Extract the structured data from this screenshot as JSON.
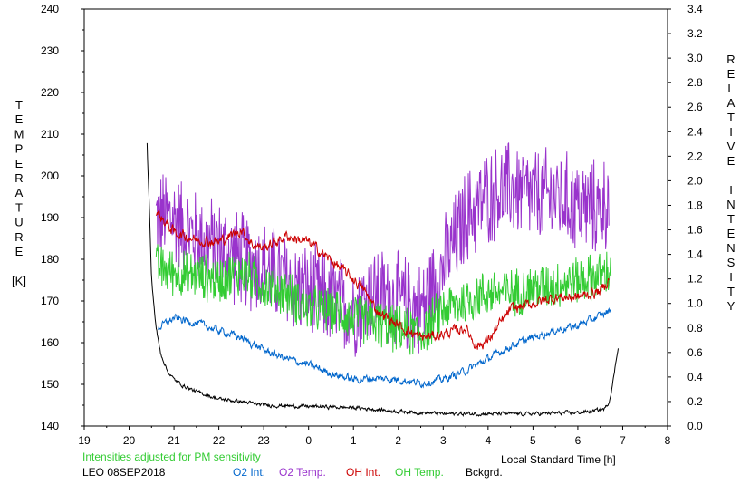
{
  "chart_data": {
    "type": "line",
    "title": "",
    "xlabel": "Local Standard Time [h]",
    "ylabel_left": "TEMPERATURE [K]",
    "ylabel_right": "RELATIVE INTENSITY",
    "ylabel_left_letters": [
      "T",
      "E",
      "M",
      "P",
      "E",
      "R",
      "A",
      "T",
      "U",
      "R",
      "E",
      "",
      "[K]"
    ],
    "ylabel_right_letters": [
      "R",
      "E",
      "L",
      "A",
      "T",
      "I",
      "V",
      "E",
      "",
      "I",
      "N",
      "T",
      "E",
      "N",
      "S",
      "I",
      "T",
      "Y"
    ],
    "x_ticks": [
      19,
      20,
      21,
      22,
      23,
      0,
      1,
      2,
      3,
      4,
      5,
      6,
      7,
      8
    ],
    "xlim": [
      19,
      32
    ],
    "ylim_left": [
      140,
      240
    ],
    "y_ticks_left": [
      140,
      150,
      160,
      170,
      180,
      190,
      200,
      210,
      220,
      230,
      240
    ],
    "ylim_right": [
      0,
      3.4
    ],
    "y_ticks_right": [
      "0.0",
      "0.2",
      "0.4",
      "0.6",
      "0.8",
      "1.0",
      "1.2",
      "1.4",
      "1.6",
      "1.8",
      "2.0",
      "2.2",
      "2.4",
      "2.6",
      "2.8",
      "3.0",
      "3.2",
      "3.4"
    ],
    "note": "Intensities adjusted for PM sensitivity",
    "station": "LEO 08SEP2018",
    "series": [
      {
        "name": "O2 Int.",
        "axis": "right",
        "color": "#0066cc",
        "noise": 0.025,
        "x": [
          20.65,
          21.0,
          21.5,
          22.0,
          22.5,
          23.0,
          23.5,
          24.0,
          24.5,
          25.0,
          25.5,
          26.0,
          26.5,
          27.0,
          27.5,
          28.0,
          28.5,
          29.0,
          29.5,
          30.0,
          30.5,
          30.75
        ],
        "values": [
          0.8,
          0.88,
          0.84,
          0.78,
          0.72,
          0.62,
          0.55,
          0.5,
          0.43,
          0.38,
          0.39,
          0.38,
          0.35,
          0.38,
          0.45,
          0.55,
          0.65,
          0.72,
          0.78,
          0.82,
          0.9,
          0.95
        ]
      },
      {
        "name": "O2 Temp.",
        "axis": "left",
        "color": "#9933cc",
        "noise": 13,
        "x": [
          20.6,
          21.0,
          21.5,
          22.0,
          22.5,
          23.0,
          23.5,
          24.0,
          24.5,
          25.0,
          25.5,
          26.0,
          26.5,
          27.0,
          27.5,
          28.0,
          28.5,
          29.0,
          29.5,
          30.0,
          30.5,
          30.7
        ],
        "values": [
          190,
          190,
          185,
          183,
          180,
          178,
          175,
          172,
          170,
          168,
          172,
          170,
          168,
          178,
          190,
          195,
          197,
          195,
          195,
          193,
          192,
          195
        ]
      },
      {
        "name": "OH Int.",
        "axis": "right",
        "color": "#cc0000",
        "noise": 0.035,
        "x": [
          20.6,
          21.0,
          21.5,
          22.0,
          22.5,
          22.75,
          23.0,
          23.5,
          24.0,
          24.5,
          25.0,
          25.25,
          25.5,
          26.0,
          26.5,
          27.0,
          27.5,
          27.75,
          28.0,
          28.5,
          29.0,
          29.5,
          30.0,
          30.5,
          30.7
        ],
        "values": [
          1.75,
          1.58,
          1.52,
          1.5,
          1.6,
          1.48,
          1.45,
          1.55,
          1.5,
          1.35,
          1.2,
          1.1,
          0.95,
          0.82,
          0.72,
          0.75,
          0.8,
          0.65,
          0.7,
          0.95,
          1.0,
          1.05,
          1.05,
          1.1,
          1.2
        ]
      },
      {
        "name": "OH Temp.",
        "axis": "left",
        "color": "#33cc33",
        "noise": 6.5,
        "x": [
          20.6,
          21.0,
          21.5,
          22.0,
          22.5,
          23.0,
          23.5,
          24.0,
          24.5,
          25.0,
          25.5,
          26.0,
          26.5,
          27.0,
          27.5,
          28.0,
          28.5,
          29.0,
          29.5,
          30.0,
          30.5,
          30.75
        ],
        "values": [
          178,
          177,
          176,
          175,
          177,
          174,
          172,
          168,
          168,
          166,
          165,
          163,
          162,
          168,
          170,
          172,
          172,
          173,
          174,
          175,
          176,
          177
        ]
      },
      {
        "name": "Bckgrd.",
        "axis": "right",
        "color": "#000000",
        "noise": 0.012,
        "x": [
          20.4,
          20.45,
          20.5,
          20.6,
          20.7,
          20.85,
          21.0,
          21.2,
          21.5,
          22.0,
          22.5,
          23.0,
          24.0,
          25.0,
          26.0,
          27.0,
          28.0,
          29.0,
          30.0,
          30.3,
          30.6,
          30.7,
          30.8,
          30.9
        ],
        "values": [
          2.3,
          1.8,
          1.2,
          0.8,
          0.6,
          0.45,
          0.38,
          0.33,
          0.28,
          0.22,
          0.2,
          0.17,
          0.16,
          0.15,
          0.12,
          0.1,
          0.1,
          0.1,
          0.11,
          0.12,
          0.14,
          0.2,
          0.4,
          0.65
        ]
      }
    ]
  }
}
